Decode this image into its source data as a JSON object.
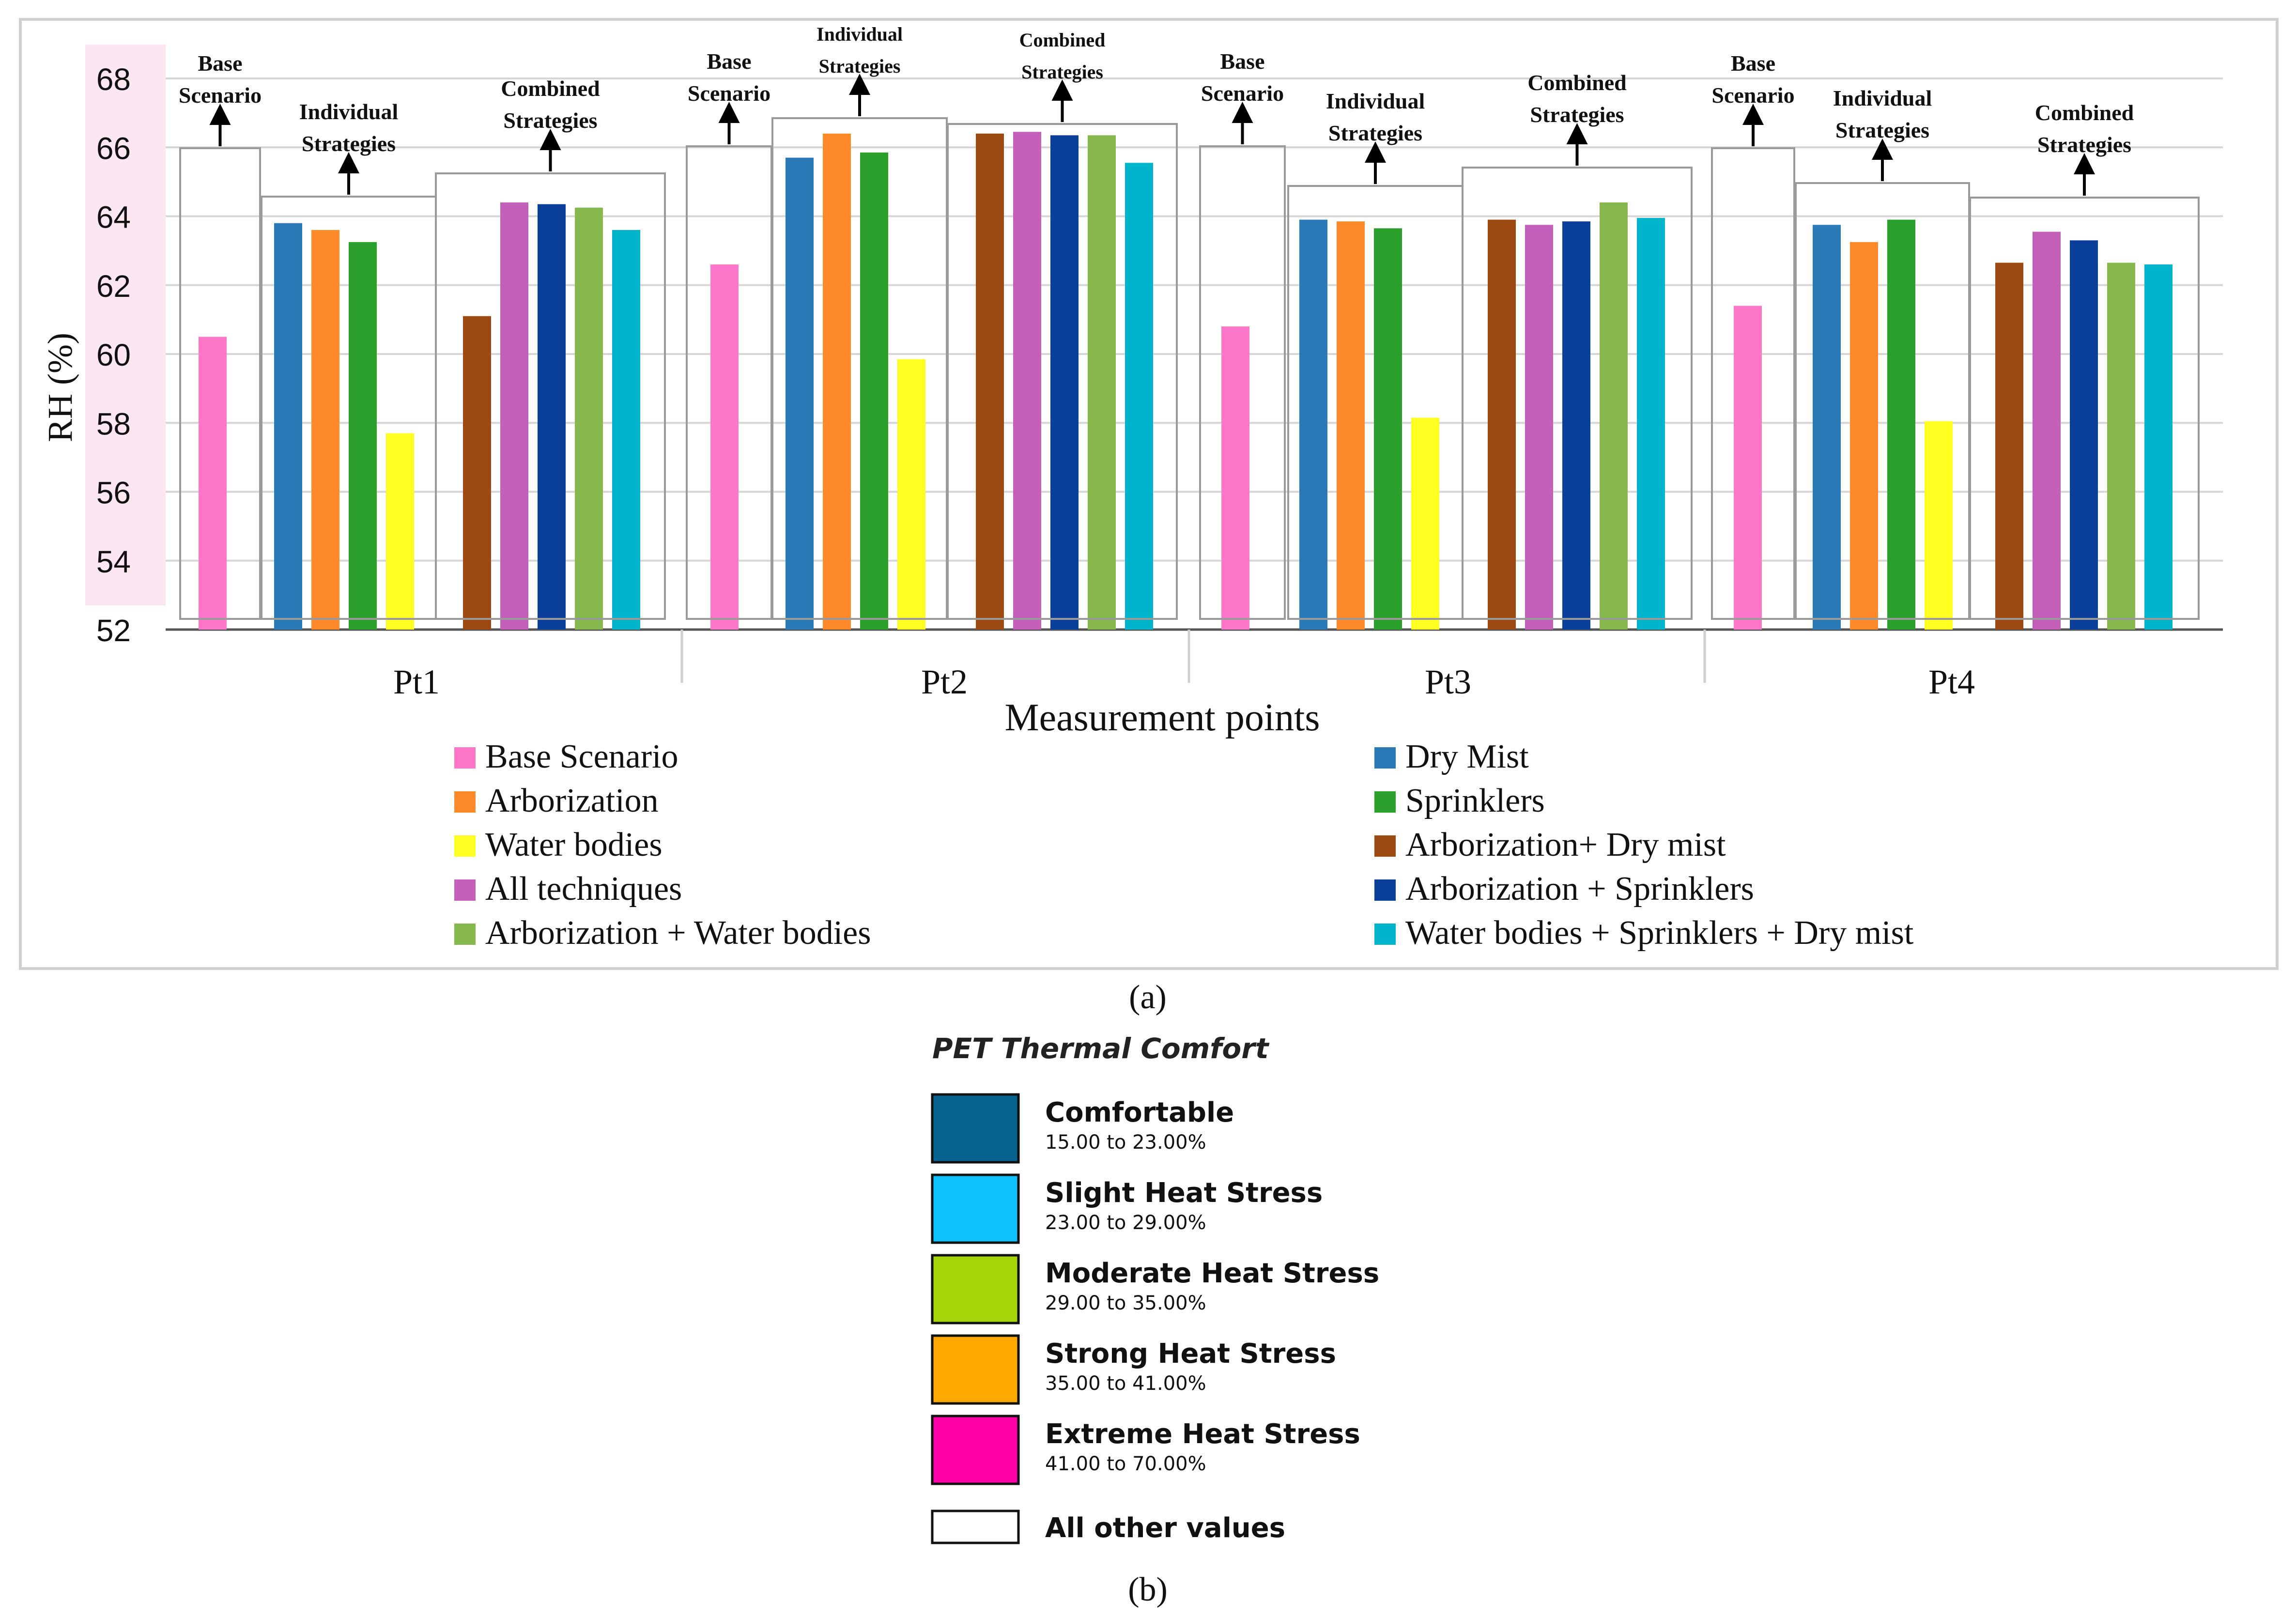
{
  "chart_data": {
    "type": "bar",
    "ylabel": "RH (%)",
    "xlabel": "Measurement points",
    "ylim": [
      52,
      68
    ],
    "yticks": [
      52,
      54,
      56,
      58,
      60,
      62,
      64,
      66,
      68
    ],
    "categories": [
      "Pt1",
      "Pt2",
      "Pt3",
      "Pt4"
    ],
    "group_labels": {
      "base": "Base Scenario",
      "individual": "Individual Strategies",
      "combined": "Combined Strategies"
    },
    "series": [
      {
        "name": "Base Scenario",
        "color": "#ff77c8",
        "group": "base",
        "values": [
          60.5,
          62.6,
          60.8,
          61.4
        ]
      },
      {
        "name": "Dry Mist",
        "color": "#2a7ab8",
        "group": "individual",
        "values": [
          63.8,
          65.7,
          63.9,
          63.75
        ]
      },
      {
        "name": "Arborization",
        "color": "#ff8a2a",
        "group": "individual",
        "values": [
          63.6,
          66.4,
          63.85,
          63.25
        ]
      },
      {
        "name": "Sprinklers",
        "color": "#2ca02c",
        "group": "individual",
        "values": [
          63.25,
          65.85,
          63.65,
          63.9
        ]
      },
      {
        "name": "Water bodies",
        "color": "#ffff22",
        "group": "individual",
        "values": [
          57.7,
          59.85,
          58.15,
          58.05
        ]
      },
      {
        "name": "Arborization+ Dry mist",
        "color": "#9c4a12",
        "group": "combined",
        "values": [
          61.1,
          66.4,
          63.9,
          62.65
        ]
      },
      {
        "name": "All techniques",
        "color": "#c45fba",
        "group": "combined",
        "values": [
          64.4,
          66.45,
          63.75,
          63.55
        ]
      },
      {
        "name": "Arborization + Sprinklers",
        "color": "#0a3f9a",
        "group": "combined",
        "values": [
          64.35,
          66.35,
          63.85,
          63.3
        ]
      },
      {
        "name": "Arborization + Water bodies",
        "color": "#86b84e",
        "group": "combined",
        "values": [
          64.25,
          66.35,
          64.4,
          62.65
        ]
      },
      {
        "name": "Water bodies + Sprinklers + Dry mist",
        "color": "#00b4cc",
        "group": "combined",
        "values": [
          63.6,
          65.55,
          63.95,
          62.6
        ]
      }
    ],
    "legend_left": [
      "Base Scenario",
      "Arborization",
      "Water bodies",
      "All techniques",
      "Arborization + Water bodies"
    ],
    "legend_right": [
      "Dry Mist",
      "Sprinklers",
      "Arborization+ Dry mist",
      "Arborization + Sprinklers",
      "Water bodies + Sprinklers + Dry mist"
    ]
  },
  "caption_a": "(a)",
  "caption_b": "(b)",
  "pet": {
    "title": "PET Thermal Comfort",
    "items": [
      {
        "label": "Comfortable",
        "range": "15.00 to 23.00%",
        "color": "#06628f"
      },
      {
        "label": "Slight Heat Stress",
        "range": "23.00 to 29.00%",
        "color": "#0dc2ff"
      },
      {
        "label": "Moderate Heat Stress",
        "range": "29.00 to 35.00%",
        "color": "#a6d60a"
      },
      {
        "label": "Strong Heat Stress",
        "range": "35.00 to 41.00%",
        "color": "#ffa800"
      },
      {
        "label": "Extreme Heat Stress",
        "range": "41.00 to 70.00%",
        "color": "#ff00a6"
      }
    ],
    "other": {
      "label": "All other values",
      "color": "#ffffff"
    }
  }
}
